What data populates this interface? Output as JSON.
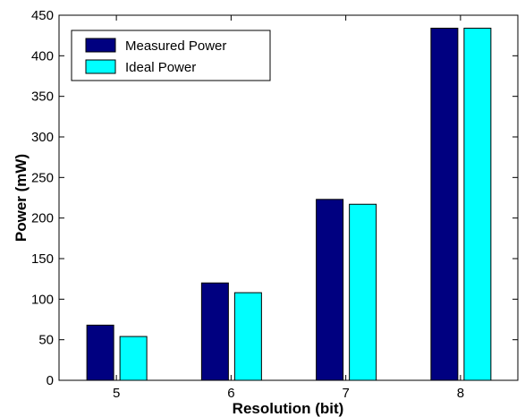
{
  "chart_data": {
    "type": "bar",
    "categories": [
      "5",
      "6",
      "7",
      "8"
    ],
    "series": [
      {
        "name": "Measured Power",
        "color": "#000080",
        "values": [
          68,
          120,
          223,
          434
        ]
      },
      {
        "name": "Ideal Power",
        "color": "#00FFFF",
        "values": [
          54,
          108,
          217,
          434
        ]
      }
    ],
    "xlabel": "Resolution (bit)",
    "ylabel": "Power (mW)",
    "ylim": [
      0,
      450
    ],
    "yticks": [
      "0",
      "50",
      "100",
      "150",
      "200",
      "250",
      "300",
      "350",
      "400",
      "450"
    ],
    "grid": false,
    "legend_position": "top-left"
  }
}
